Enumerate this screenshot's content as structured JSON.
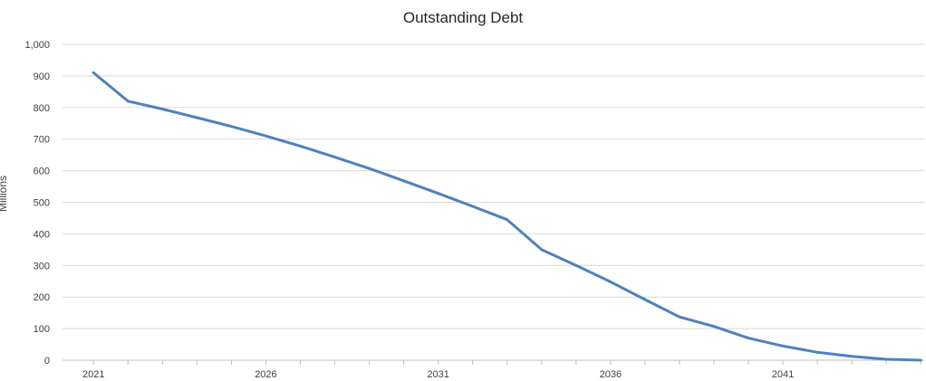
{
  "chart_data": {
    "type": "line",
    "title": "Outstanding Debt",
    "xlabel": "",
    "ylabel": "Millions",
    "ylim": [
      0,
      1000
    ],
    "yticks": [
      0,
      100,
      200,
      300,
      400,
      500,
      600,
      700,
      800,
      900,
      1000
    ],
    "ytick_labels": [
      "0",
      "100",
      "200",
      "300",
      "400",
      "500",
      "600",
      "700",
      "800",
      "900",
      "1,000"
    ],
    "xtick_labels": [
      "2021",
      "2026",
      "2031",
      "2036",
      "2041"
    ],
    "xtick_values": [
      2021,
      2026,
      2031,
      2036,
      2041
    ],
    "grid": "horizontal",
    "legend": "none",
    "series": [
      {
        "color": "#4f81bd",
        "x": [
          2021,
          2022,
          2023,
          2024,
          2025,
          2026,
          2027,
          2028,
          2029,
          2030,
          2031,
          2032,
          2033,
          2034,
          2035,
          2036,
          2037,
          2038,
          2039,
          2040,
          2041,
          2042,
          2043,
          2044,
          2045
        ],
        "y": [
          910,
          820,
          795,
          768,
          740,
          710,
          678,
          643,
          607,
          568,
          528,
          487,
          445,
          350,
          300,
          248,
          192,
          137,
          107,
          70,
          45,
          25,
          12,
          3,
          0
        ]
      }
    ]
  }
}
